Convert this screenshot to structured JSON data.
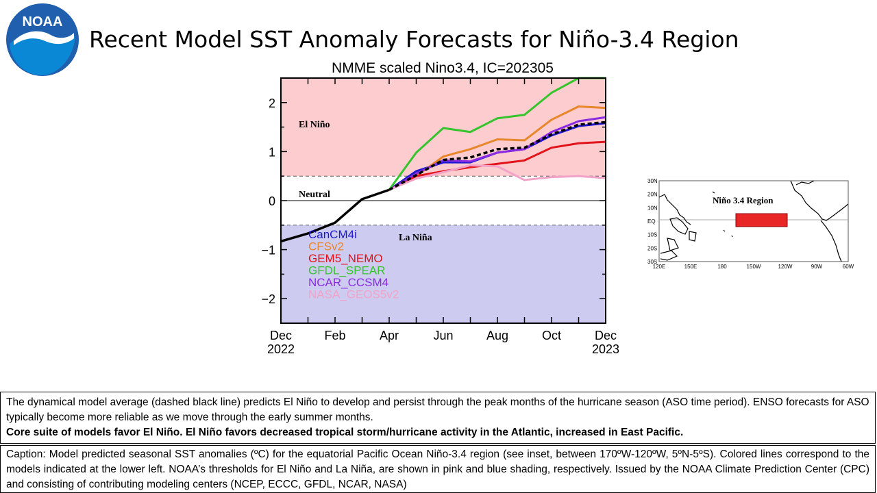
{
  "header": {
    "title": "Recent Model SST Anomaly Forecasts for Niño-3.4 Region",
    "logo_text": "NOAA"
  },
  "chart_data": {
    "type": "line",
    "title": "NMME scaled Nino3.4, IC=202305",
    "xlabel": "",
    "ylabel": "",
    "x_ticks": [
      {
        "label": "Dec",
        "sub": "2022",
        "m": 0
      },
      {
        "label": "Feb",
        "sub": "",
        "m": 2
      },
      {
        "label": "Apr",
        "sub": "",
        "m": 4
      },
      {
        "label": "Jun",
        "sub": "",
        "m": 6
      },
      {
        "label": "Aug",
        "sub": "",
        "m": 8
      },
      {
        "label": "Oct",
        "sub": "",
        "m": 10
      },
      {
        "label": "Dec",
        "sub": "2023",
        "m": 12
      }
    ],
    "y_ticks": [
      {
        "label": "2",
        "v": 2
      },
      {
        "label": "1",
        "v": 1
      },
      {
        "label": "0",
        "v": 0
      },
      {
        "label": "−1",
        "v": -1
      },
      {
        "label": "−2",
        "v": -2
      }
    ],
    "xlim": [
      0,
      12
    ],
    "ylim": [
      -2.5,
      2.5
    ],
    "thresholds": {
      "el_nino": 0.5,
      "la_nina": -0.5
    },
    "regions": [
      {
        "label": "El Niño",
        "from": 0.5,
        "to": 2.5,
        "color": "#fccccf"
      },
      {
        "label": "La Niña",
        "from": -2.5,
        "to": -0.5,
        "color": "#cdccf0"
      }
    ],
    "region_labels": {
      "el_nino": "El Niño",
      "neutral": "Neutral",
      "la_nina": "La Niña"
    },
    "observed": {
      "color": "#000000",
      "points": [
        [
          0,
          -0.83
        ],
        [
          1,
          -0.67
        ],
        [
          2,
          -0.45
        ],
        [
          3,
          0.03
        ],
        [
          4,
          0.22
        ]
      ]
    },
    "series": [
      {
        "name": "CanCM4i",
        "color": "#1c17d1",
        "values": [
          0.22,
          0.6,
          0.78,
          0.78,
          0.98,
          1.05,
          1.33,
          1.52,
          1.58
        ]
      },
      {
        "name": "CFSv2",
        "color": "#e8862b",
        "values": [
          0.22,
          0.5,
          0.9,
          1.05,
          1.25,
          1.23,
          1.65,
          1.92,
          1.89
        ]
      },
      {
        "name": "GEM5_NEMO",
        "color": "#e2131a",
        "values": [
          0.22,
          0.5,
          0.6,
          0.68,
          0.75,
          0.82,
          1.08,
          1.17,
          1.2
        ]
      },
      {
        "name": "GFDL_SPEAR",
        "color": "#36c42d",
        "values": [
          0.22,
          0.98,
          1.48,
          1.4,
          1.68,
          1.75,
          2.2,
          2.5,
          2.5
        ]
      },
      {
        "name": "NCAR_CCSM4",
        "color": "#8a2be2",
        "values": [
          0.22,
          0.55,
          0.82,
          0.8,
          0.98,
          1.05,
          1.4,
          1.62,
          1.7
        ]
      },
      {
        "name": "NASA_GEOS5v2",
        "color": "#f2a2c7",
        "values": [
          0.22,
          0.45,
          0.58,
          0.72,
          0.7,
          0.42,
          0.48,
          0.5,
          0.46
        ]
      },
      {
        "name": "",
        "color": "#000000",
        "dashed": true,
        "values": [
          0.22,
          0.52,
          0.83,
          0.88,
          1.05,
          1.08,
          1.35,
          1.55,
          1.6
        ]
      }
    ],
    "forecast_months": [
      4,
      5,
      6,
      7,
      8,
      9,
      10,
      11,
      12
    ]
  },
  "inset_map": {
    "title": "Niño 3.4 Region",
    "lat_labels": [
      "30N",
      "20N",
      "10N",
      "EQ",
      "10S",
      "20S",
      "30S"
    ],
    "lon_labels": [
      "120E",
      "150E",
      "180",
      "150W",
      "120W",
      "90W",
      "60W"
    ],
    "box_color": "#e82626"
  },
  "summary": {
    "text": "The dynamical model average (dashed black line) predicts El Niño to develop and persist through the peak months of the hurricane season (ASO time period). ENSO forecasts for ASO typically become more reliable as we move through the early summer months.",
    "bold_text": "Core suite of models favor El Niño. El Niño favors decreased tropical storm/hurricane activity in the Atlantic, increased in East Pacific."
  },
  "caption": {
    "text": "Caption: Model predicted seasonal SST anomalies (ºC) for the equatorial Pacific Ocean Niño-3.4 region (see inset, between 170ºW-120ºW, 5ºN-5ºS). Colored lines correspond to the models indicated at the lower left. NOAA’s thresholds for El Niño and La Niña, are shown in pink and blue shading, respectively. Issued by the NOAA Climate Prediction Center (CPC) and consisting of contributing modeling centers (NCEP, ECCC, GFDL, NCAR, NASA)"
  }
}
